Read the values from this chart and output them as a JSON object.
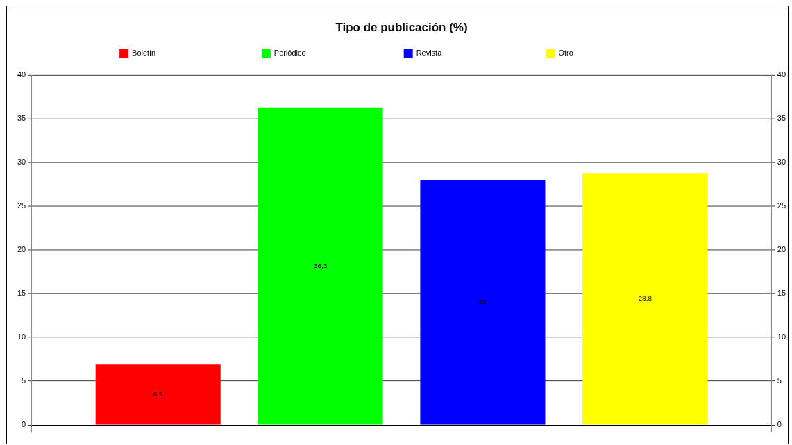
{
  "chart_data": {
    "type": "bar",
    "title": "Tipo de publicación (%)",
    "categories": [
      null
    ],
    "series": [
      {
        "name": "Boletín",
        "color": "#ff0000",
        "values": [
          6.9
        ],
        "value_labels": [
          "6,9"
        ]
      },
      {
        "name": "Periódico",
        "color": "#00ff00",
        "values": [
          36.3
        ],
        "value_labels": [
          "36,3"
        ]
      },
      {
        "name": "Revista",
        "color": "#0000ff",
        "values": [
          28
        ],
        "value_labels": [
          "28"
        ]
      },
      {
        "name": "Otro",
        "color": "#ffff00",
        "values": [
          28.8
        ],
        "value_labels": [
          "28,8"
        ]
      }
    ],
    "ylim": [
      0,
      40
    ],
    "yticks": [
      0,
      5,
      10,
      15,
      20,
      25,
      30,
      35,
      40
    ],
    "y2lim": [
      0,
      40
    ],
    "y2ticks": [
      0,
      5,
      10,
      15,
      20,
      25,
      30,
      35,
      40
    ],
    "grid": "y",
    "legend": "top"
  }
}
